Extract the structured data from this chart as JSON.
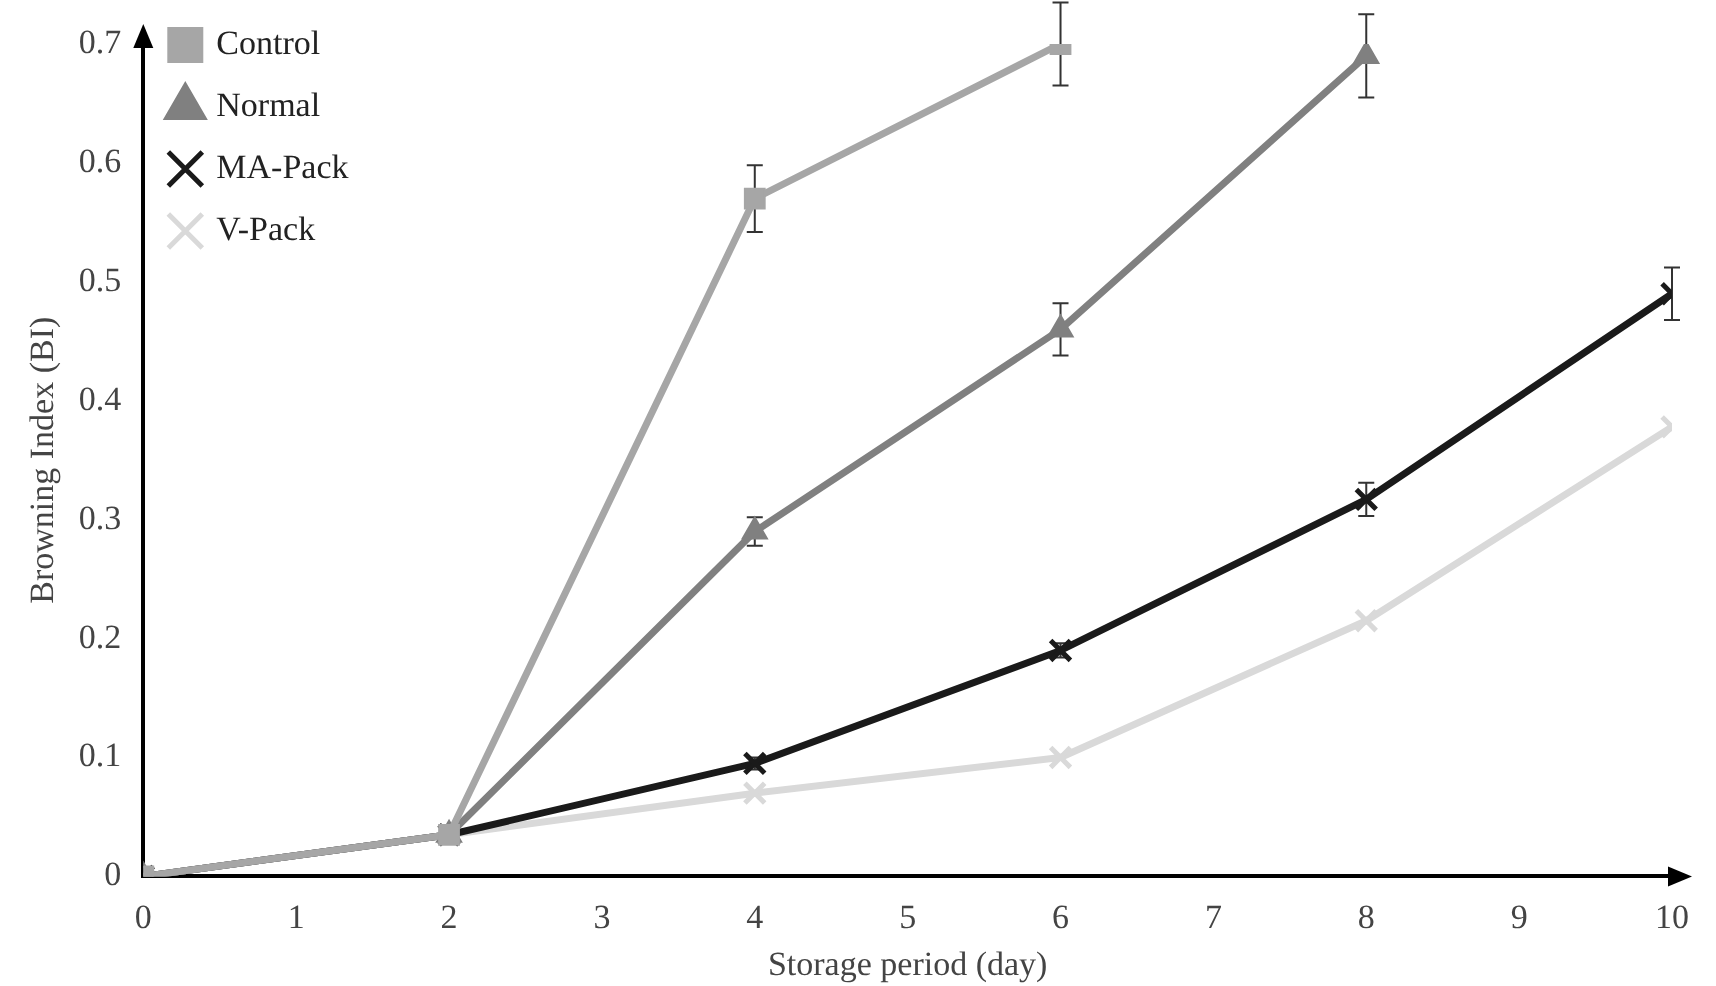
{
  "chart_data": {
    "type": "line",
    "xlabel": "Storage period (day)",
    "ylabel": "Browning Index (BI)",
    "xlim": [
      0,
      10
    ],
    "xticks": [
      0,
      1,
      2,
      3,
      4,
      5,
      6,
      7,
      8,
      9,
      10
    ],
    "ylim": [
      0,
      0.7
    ],
    "yticks": [
      0,
      0.1,
      0.2,
      0.3,
      0.4,
      0.5,
      0.6,
      0.7
    ],
    "grid": false,
    "legend": "top left",
    "line_style": "solid",
    "series": [
      {
        "name": "Control",
        "color": "#a6a6a6",
        "marker": "square",
        "x": [
          0,
          2,
          4,
          6
        ],
        "values": [
          0,
          0.035,
          0.57,
          0.7
        ],
        "errors": [
          null,
          null,
          0.028,
          0.035
        ]
      },
      {
        "name": "Normal",
        "color": "#808080",
        "marker": "triangle",
        "x": [
          0,
          2,
          4,
          6,
          8
        ],
        "values": [
          0,
          0.035,
          0.29,
          0.46,
          0.69
        ],
        "errors": [
          null,
          null,
          0.012,
          0.022,
          0.035
        ]
      },
      {
        "name": "MA-Pack",
        "color": "#1a1a1a",
        "marker": "cross",
        "x": [
          0,
          2,
          4,
          6,
          8,
          10
        ],
        "values": [
          0,
          0.035,
          0.095,
          0.19,
          0.317,
          0.49
        ],
        "errors": [
          null,
          null,
          0.005,
          0.006,
          0.014,
          0.022
        ]
      },
      {
        "name": "V-Pack",
        "color": "#d9d9d9",
        "marker": "cross",
        "x": [
          0,
          2,
          4,
          6,
          8,
          10
        ],
        "values": [
          0,
          0.035,
          0.07,
          0.1,
          0.215,
          0.378
        ]
      }
    ]
  }
}
